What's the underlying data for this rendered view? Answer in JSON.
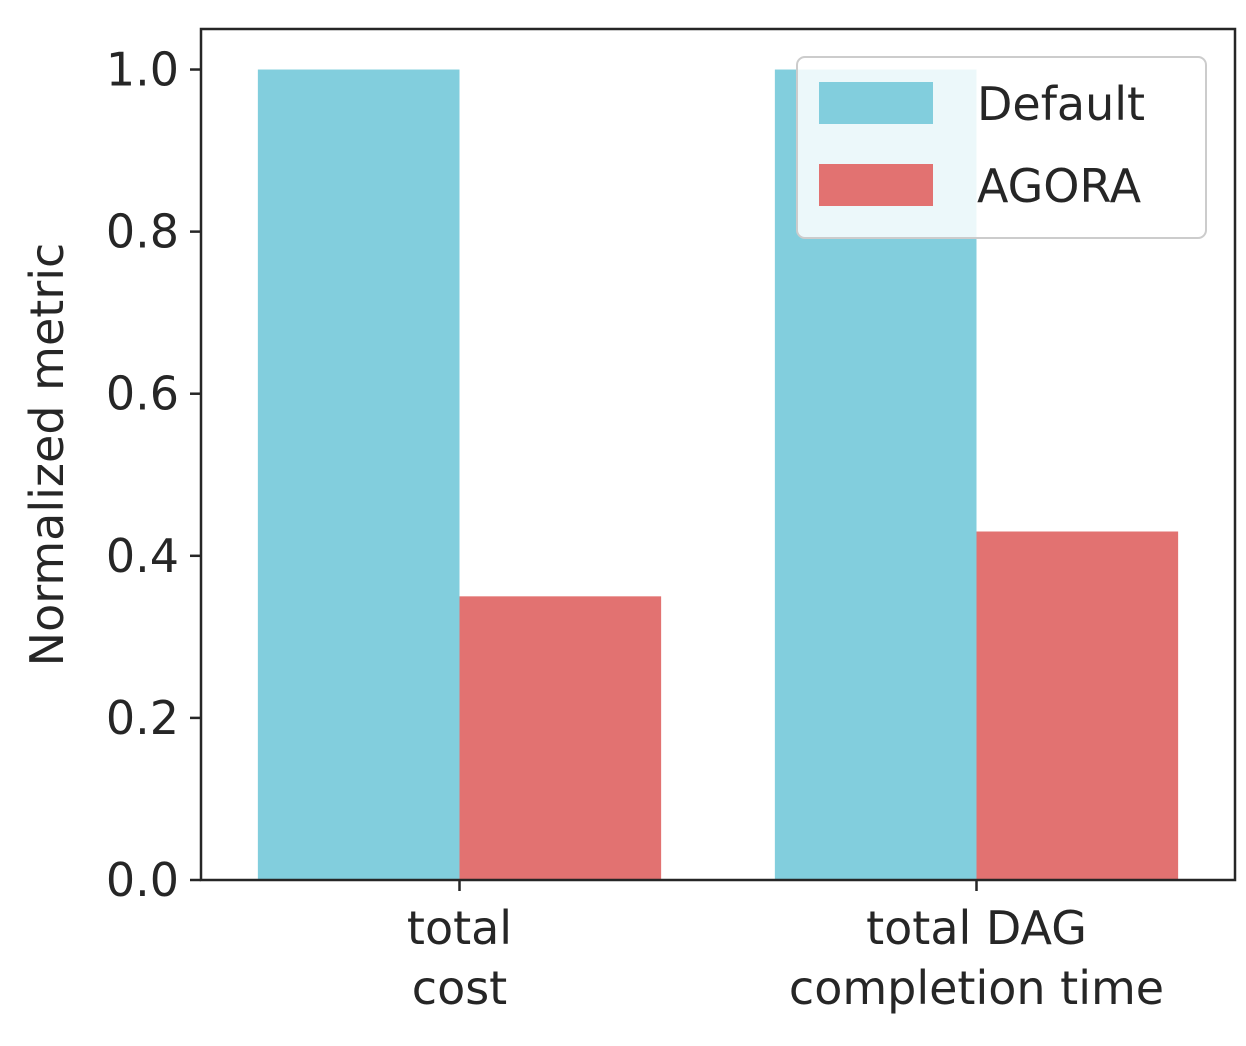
{
  "chart_data": {
    "type": "bar",
    "categories": [
      [
        "total",
        "cost"
      ],
      [
        "total DAG",
        "completion time"
      ]
    ],
    "series": [
      {
        "name": "Default",
        "color": "#82cedd",
        "values": [
          1.0,
          1.0
        ]
      },
      {
        "name": "AGORA",
        "color": "#e27271",
        "values": [
          0.35,
          0.43
        ]
      }
    ],
    "title": "",
    "xlabel": "",
    "ylabel": "Normalized metric",
    "ylim": [
      0,
      1.05
    ],
    "yticks": [
      0.0,
      0.2,
      0.4,
      0.6,
      0.8,
      1.0
    ],
    "ytick_labels": [
      "0.0",
      "0.2",
      "0.4",
      "0.6",
      "0.8",
      "1.0"
    ],
    "grid": false,
    "legend_position": "top-right"
  }
}
